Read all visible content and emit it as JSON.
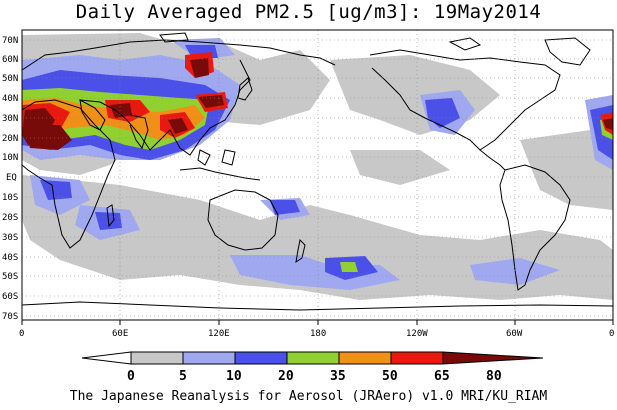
{
  "title": "Daily Averaged PM2.5 [ug/m3]: 19May2014",
  "footer": "The Japanese Reanalysis for Aerosol (JRAero) v1.0 MRI/KU_RIAM",
  "lat_labels": [
    "70N",
    "60N",
    "50N",
    "40N",
    "30N",
    "20N",
    "10N",
    "EQ",
    "10S",
    "20S",
    "30S",
    "40S",
    "50S",
    "60S",
    "70S"
  ],
  "lon_labels": [
    "0",
    "60E",
    "120E",
    "180",
    "120W",
    "60W",
    "0"
  ],
  "colorbar": {
    "ticks": [
      "0",
      "5",
      "10",
      "20",
      "35",
      "50",
      "65",
      "80"
    ],
    "colors": [
      "#ffffff",
      "#c8c8c8",
      "#a0a8f0",
      "#4a50e8",
      "#90d030",
      "#f09018",
      "#e81a10",
      "#780a0a"
    ]
  }
}
